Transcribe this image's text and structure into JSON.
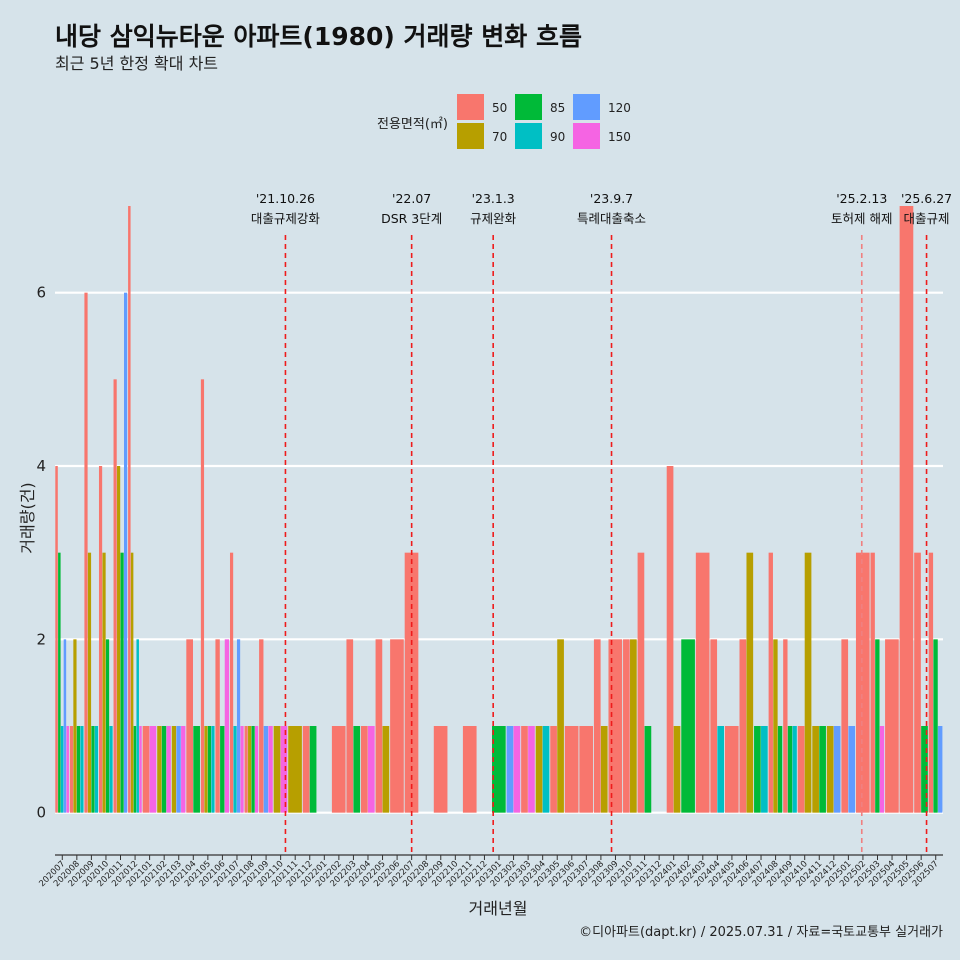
{
  "chart_data": {
    "type": "bar",
    "title": "내당 삼익뉴타운 아파트(1980) 거래량 변화 흐름",
    "subtitle": "최근 5년 한정 확대 차트",
    "xlabel": "거래년월",
    "ylabel": "거래량(건)",
    "ylim": [
      -0.35,
      7.3
    ],
    "yticks": [
      0,
      2,
      4,
      6
    ],
    "grid": true,
    "caption": "©디아파트(dapt.kr) / 2025.07.31 / 자료=국토교통부 실거래가",
    "legend": {
      "title": "전용면적(㎡)",
      "placement": "top",
      "items": [
        {
          "name": "50",
          "color": "#f8766d"
        },
        {
          "name": "70",
          "color": "#b79f00"
        },
        {
          "name": "85",
          "color": "#00ba38"
        },
        {
          "name": "90",
          "color": "#00bfc4"
        },
        {
          "name": "120",
          "color": "#619cff"
        },
        {
          "name": "150",
          "color": "#f564e3"
        }
      ]
    },
    "months": [
      "202007",
      "202008",
      "202009",
      "202010",
      "202011",
      "202012",
      "202101",
      "202102",
      "202103",
      "202104",
      "202105",
      "202106",
      "202107",
      "202108",
      "202109",
      "202110",
      "202111",
      "202112",
      "202201",
      "202202",
      "202203",
      "202204",
      "202205",
      "202206",
      "202207",
      "202208",
      "202209",
      "202210",
      "202211",
      "202212",
      "202301",
      "202302",
      "202303",
      "202304",
      "202305",
      "202306",
      "202307",
      "202308",
      "202309",
      "202310",
      "202311",
      "202312",
      "202401",
      "202402",
      "202403",
      "202404",
      "202405",
      "202406",
      "202407",
      "202408",
      "202409",
      "202410",
      "202411",
      "202412",
      "202501",
      "202502",
      "202503",
      "202504",
      "202505",
      "202506",
      "202507"
    ],
    "data": [
      {
        "month": "202007",
        "values": {
          "50": 4,
          "85": 3,
          "90": 1,
          "120": 2,
          "150": 1
        }
      },
      {
        "month": "202008",
        "values": {
          "50": 1,
          "70": 2,
          "85": 1,
          "90": 1
        }
      },
      {
        "month": "202009",
        "values": {
          "50": 6,
          "70": 3,
          "85": 1,
          "90": 1
        }
      },
      {
        "month": "202010",
        "values": {
          "50": 4,
          "70": 3,
          "85": 2,
          "90": 1
        }
      },
      {
        "month": "202011",
        "values": {
          "50": 5,
          "70": 4,
          "85": 3,
          "120": 6
        }
      },
      {
        "month": "202012",
        "values": {
          "50": 7,
          "70": 3,
          "85": 1,
          "90": 2,
          "150": 1
        }
      },
      {
        "month": "202101",
        "values": {
          "50": 1,
          "150": 1
        }
      },
      {
        "month": "202102",
        "values": {
          "70": 1,
          "85": 1,
          "150": 1
        }
      },
      {
        "month": "202103",
        "values": {
          "70": 1,
          "120": 1,
          "150": 1
        }
      },
      {
        "month": "202104",
        "values": {
          "50": 2,
          "85": 1
        }
      },
      {
        "month": "202105",
        "values": {
          "50": 5,
          "70": 1,
          "85": 1,
          "90": 1
        }
      },
      {
        "month": "202106",
        "values": {
          "50": 2,
          "85": 1,
          "150": 2
        }
      },
      {
        "month": "202107",
        "values": {
          "50": 3,
          "90": 1,
          "120": 2,
          "150": 1
        }
      },
      {
        "month": "202108",
        "values": {
          "50": 1,
          "70": 1,
          "85": 1,
          "150": 1
        }
      },
      {
        "month": "202109",
        "values": {
          "50": 2,
          "120": 1,
          "150": 1
        }
      },
      {
        "month": "202110",
        "values": {
          "70": 1,
          "150": 1
        }
      },
      {
        "month": "202111",
        "values": {
          "70": 1
        }
      },
      {
        "month": "202112",
        "values": {
          "50": 1,
          "85": 1
        }
      },
      {
        "month": "202201",
        "values": {}
      },
      {
        "month": "202202",
        "values": {
          "50": 1
        }
      },
      {
        "month": "202203",
        "values": {
          "50": 2,
          "85": 1
        }
      },
      {
        "month": "202204",
        "values": {
          "50": 1,
          "150": 1
        }
      },
      {
        "month": "202205",
        "values": {
          "50": 2,
          "70": 1
        }
      },
      {
        "month": "202206",
        "values": {
          "50": 2
        }
      },
      {
        "month": "202207",
        "values": {
          "50": 3
        }
      },
      {
        "month": "202208",
        "values": {}
      },
      {
        "month": "202209",
        "values": {
          "50": 1
        }
      },
      {
        "month": "202210",
        "values": {}
      },
      {
        "month": "202211",
        "values": {
          "50": 1
        }
      },
      {
        "month": "202212",
        "values": {}
      },
      {
        "month": "202301",
        "values": {
          "85": 1
        }
      },
      {
        "month": "202302",
        "values": {
          "120": 1,
          "150": 1
        }
      },
      {
        "month": "202303",
        "values": {
          "150": 1,
          "50": 1
        }
      },
      {
        "month": "202304",
        "values": {
          "70": 1,
          "90": 1
        }
      },
      {
        "month": "202305",
        "values": {
          "70": 2,
          "50": 1
        }
      },
      {
        "month": "202306",
        "values": {
          "50": 1
        }
      },
      {
        "month": "202307",
        "values": {
          "50": 1
        }
      },
      {
        "month": "202308",
        "values": {
          "50": 2,
          "70": 1
        }
      },
      {
        "month": "202309",
        "values": {
          "50": 2
        }
      },
      {
        "month": "202310",
        "values": {
          "50": 2,
          "70": 2
        }
      },
      {
        "month": "202311",
        "values": {
          "50": 3,
          "85": 1
        }
      },
      {
        "month": "202312",
        "values": {}
      },
      {
        "month": "202401",
        "values": {
          "50": 4,
          "70": 1
        }
      },
      {
        "month": "202402",
        "values": {
          "85": 2
        }
      },
      {
        "month": "202403",
        "values": {
          "50": 3
        }
      },
      {
        "month": "202404",
        "values": {
          "50": 2,
          "90": 1
        }
      },
      {
        "month": "202405",
        "values": {
          "50": 1
        }
      },
      {
        "month": "202406",
        "values": {
          "50": 2,
          "70": 3
        }
      },
      {
        "month": "202407",
        "values": {
          "85": 1,
          "90": 1
        }
      },
      {
        "month": "202408",
        "values": {
          "50": 3,
          "70": 2,
          "85": 1
        }
      },
      {
        "month": "202409",
        "values": {
          "50": 2,
          "85": 1,
          "90": 1
        }
      },
      {
        "month": "202410",
        "values": {
          "50": 1,
          "70": 3
        }
      },
      {
        "month": "202411",
        "values": {
          "70": 1,
          "85": 1
        }
      },
      {
        "month": "202412",
        "values": {
          "70": 1,
          "120": 1
        }
      },
      {
        "month": "202501",
        "values": {
          "50": 2,
          "120": 1
        }
      },
      {
        "month": "202502",
        "values": {
          "50": 3
        }
      },
      {
        "month": "202503",
        "values": {
          "50": 3,
          "85": 2,
          "150": 1
        }
      },
      {
        "month": "202504",
        "values": {
          "50": 2
        }
      },
      {
        "month": "202505",
        "values": {
          "50": 7
        }
      },
      {
        "month": "202506",
        "values": {
          "50": 3,
          "85": 1
        }
      },
      {
        "month": "202507",
        "values": {
          "50": 3,
          "85": 2,
          "120": 1
        }
      }
    ],
    "events": [
      {
        "date": "'21.10.26",
        "label": "대출규제강화",
        "month": "202110",
        "offset": 0.83,
        "color": "#ee1c1c"
      },
      {
        "date": "'22.07",
        "label": "DSR 3단계",
        "month": "202207",
        "offset": 0.5,
        "color": "#ee1c1c"
      },
      {
        "date": "'23.1.3",
        "label": "규제완화",
        "month": "202301",
        "offset": 0.1,
        "color": "#ee1c1c"
      },
      {
        "date": "'23.9.7",
        "label": "특례대출축소",
        "month": "202309",
        "offset": 0.23,
        "color": "#ee1c1c"
      },
      {
        "date": "'25.2.13",
        "label": "토허제 해제",
        "month": "202502",
        "offset": 0.42,
        "color": "#f08080"
      },
      {
        "date": "'25.6.27",
        "label": "대출규제",
        "month": "202506",
        "offset": 0.87,
        "color": "#ee1c1c"
      }
    ]
  }
}
